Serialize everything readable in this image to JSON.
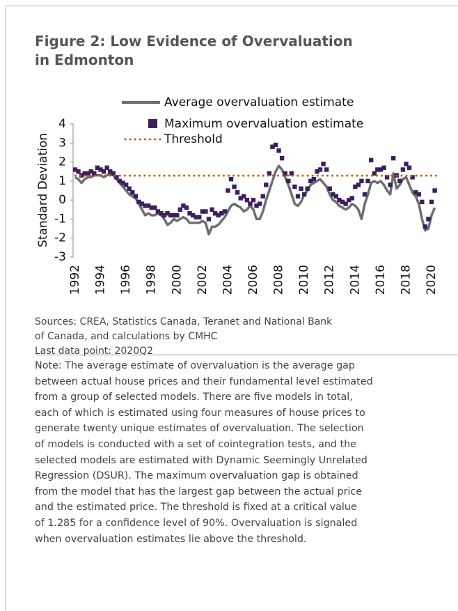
{
  "header": {
    "title_lines": [
      "Figure 2: Low Evidence of Overvaluation",
      "in Edmonton"
    ]
  },
  "chart_data": {
    "type": "line-scatter",
    "ylabel": "Standard Deviation",
    "x": [
      1992,
      1992.25,
      1992.5,
      1992.75,
      1993,
      1993.25,
      1993.5,
      1993.75,
      1994,
      1994.25,
      1994.5,
      1994.75,
      1995,
      1995.25,
      1995.5,
      1995.75,
      1996,
      1996.25,
      1996.5,
      1996.75,
      1997,
      1997.25,
      1997.5,
      1997.75,
      1998,
      1998.25,
      1998.5,
      1998.75,
      1999,
      1999.25,
      1999.5,
      1999.75,
      2000,
      2000.25,
      2000.5,
      2000.75,
      2001,
      2001.25,
      2001.5,
      2001.75,
      2002,
      2002.25,
      2002.5,
      2002.75,
      2003,
      2003.25,
      2003.5,
      2003.75,
      2004,
      2004.25,
      2004.5,
      2004.75,
      2005,
      2005.25,
      2005.5,
      2005.75,
      2006,
      2006.25,
      2006.5,
      2006.75,
      2007,
      2007.25,
      2007.5,
      2007.75,
      2008,
      2008.25,
      2008.5,
      2008.75,
      2009,
      2009.25,
      2009.5,
      2009.75,
      2010,
      2010.25,
      2010.5,
      2010.75,
      2011,
      2011.25,
      2011.5,
      2011.75,
      2012,
      2012.25,
      2012.5,
      2012.75,
      2013,
      2013.25,
      2013.5,
      2013.75,
      2014,
      2014.25,
      2014.5,
      2014.75,
      2015,
      2015.25,
      2015.5,
      2015.75,
      2016,
      2016.25,
      2016.5,
      2016.75,
      2017,
      2017.25,
      2017.5,
      2017.75,
      2018,
      2018.25,
      2018.5,
      2018.75,
      2019,
      2019.25,
      2019.5,
      2019.75,
      2020,
      2020.25
    ],
    "series": [
      {
        "name": "Average overvaluation estimate",
        "mark": "line",
        "color": "#6d6e71",
        "values": [
          1.2,
          1.1,
          0.9,
          1.1,
          1.2,
          1.2,
          1.3,
          1.3,
          1.3,
          1.2,
          1.3,
          1.4,
          1.3,
          1.1,
          0.9,
          0.7,
          0.5,
          0.3,
          0.2,
          0.1,
          -0.2,
          -0.5,
          -0.8,
          -0.7,
          -0.8,
          -0.8,
          -0.7,
          -0.8,
          -1.0,
          -1.3,
          -1.2,
          -1.0,
          -1.1,
          -1.0,
          -0.9,
          -1.0,
          -1.2,
          -1.2,
          -1.2,
          -1.2,
          -1.1,
          -1.2,
          -1.8,
          -1.4,
          -1.4,
          -1.3,
          -1.1,
          -0.9,
          -0.6,
          -0.3,
          -0.2,
          -0.3,
          -0.4,
          -0.6,
          -0.5,
          -0.3,
          -0.5,
          -1.0,
          -1.0,
          -0.6,
          0.0,
          0.5,
          1.0,
          1.5,
          1.8,
          1.6,
          1.2,
          0.8,
          0.3,
          -0.2,
          -0.3,
          -0.1,
          0.3,
          0.5,
          0.8,
          0.9,
          1.0,
          1.1,
          0.9,
          0.7,
          0.3,
          0.0,
          -0.1,
          -0.3,
          -0.4,
          -0.5,
          -0.4,
          -0.2,
          -0.3,
          -0.5,
          -1.0,
          -0.2,
          0.3,
          0.9,
          1.0,
          0.9,
          1.0,
          0.8,
          0.5,
          0.3,
          1.4,
          0.6,
          0.8,
          1.1,
          1.2,
          0.8,
          0.4,
          0.2,
          -0.2,
          -1.0,
          -1.6,
          -1.5,
          -0.8,
          -0.4
        ]
      },
      {
        "name": "Maximum overvaluation estimate",
        "mark": "square",
        "color": "#3d1f5e",
        "values": [
          1.6,
          1.5,
          1.3,
          1.4,
          1.4,
          1.5,
          1.4,
          1.7,
          1.6,
          1.5,
          1.7,
          1.5,
          1.4,
          1.2,
          1.0,
          0.9,
          0.8,
          0.6,
          0.4,
          0.2,
          -0.1,
          -0.2,
          -0.3,
          -0.3,
          -0.4,
          -0.4,
          -0.6,
          -0.7,
          -0.8,
          -0.7,
          -0.8,
          -0.8,
          -0.8,
          -0.5,
          -0.3,
          -0.4,
          -0.7,
          -0.8,
          -0.9,
          -0.9,
          -0.6,
          -0.6,
          -1.0,
          -0.5,
          -0.7,
          -0.8,
          -0.7,
          -0.6,
          0.5,
          1.1,
          0.7,
          0.4,
          0.1,
          0.2,
          0.0,
          -0.2,
          0.0,
          -0.3,
          -0.2,
          0.2,
          0.8,
          1.4,
          2.8,
          2.9,
          2.6,
          2.2,
          1.4,
          1.0,
          1.4,
          0.7,
          0.2,
          0.6,
          0.3,
          0.6,
          1.0,
          1.1,
          1.5,
          1.6,
          1.9,
          1.6,
          0.6,
          0.3,
          0.2,
          0.0,
          -0.1,
          -0.2,
          0.0,
          0.1,
          0.7,
          0.8,
          1.0,
          0.3,
          1.0,
          2.1,
          1.4,
          1.6,
          1.6,
          1.7,
          1.2,
          0.8,
          2.2,
          1.3,
          1.0,
          1.6,
          1.9,
          1.7,
          1.2,
          0.4,
          0.3,
          -0.1,
          -1.4,
          -1.0,
          -0.1,
          0.5
        ]
      },
      {
        "name": "Threshold",
        "mark": "dotted",
        "color": "#c55a11",
        "value": 1.285
      }
    ],
    "xlim": [
      1991.8,
      2020.9
    ],
    "xticks": [
      1992,
      1994,
      1996,
      1998,
      2000,
      2002,
      2004,
      2006,
      2008,
      2010,
      2012,
      2014,
      2016,
      2018,
      2020
    ],
    "ylim": [
      -3,
      4
    ],
    "yticks": [
      -3,
      -2,
      -1,
      0,
      1,
      2,
      3,
      4
    ]
  },
  "sources": [
    "Sources: CREA, Statistics Canada, Teranet and National Bank",
    "of Canada, and calculations by CMHC",
    "Last data point: 2020Q2"
  ],
  "note": [
    "Note: The average estimate of overvaluation is the average gap",
    "between actual house prices and their fundamental level estimated",
    "from a group of selected models. There are five models in total,",
    "each of which is estimated using four measures of house prices to",
    "generate twenty unique estimates of overvaluation. The selection",
    "of models is conducted with a set of cointegration tests, and the",
    "selected models are estimated with Dynamic Seemingly Unrelated",
    "Regression (DSUR). The maximum overvaluation gap is obtained",
    "from the model that has the largest gap between the actual price",
    "and the estimated price. The threshold is fixed at a critical value",
    "of 1.285 for a confidence level of 90%. Overvaluation is signaled",
    "when overvaluation estimates lie above the threshold."
  ]
}
